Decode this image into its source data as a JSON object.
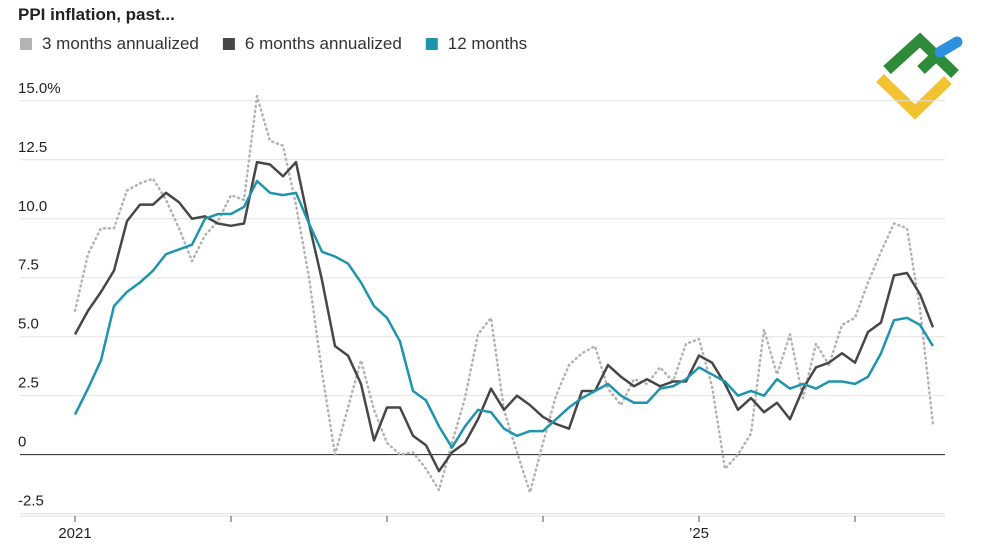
{
  "chart_data": {
    "type": "line",
    "title": "PPI inflation, past...",
    "categories": [
      "2021",
      null,
      null,
      null,
      null,
      null,
      null,
      null,
      null,
      null,
      null,
      null,
      null,
      null,
      null,
      null,
      null,
      null,
      null,
      null,
      null,
      null,
      null,
      null,
      null,
      null,
      null,
      null,
      null,
      null,
      null,
      null,
      null,
      null,
      null,
      null,
      null,
      null,
      null,
      null,
      null,
      null,
      null,
      null,
      null,
      null,
      null,
      null,
      "’25",
      null,
      null,
      null,
      null,
      null,
      null,
      null,
      null,
      null,
      null,
      null,
      null,
      null,
      null,
      null,
      null,
      null,
      null
    ],
    "series": [
      {
        "name": "3 months annualized",
        "color": "#b3b3b3",
        "dash": true,
        "values": [
          6.1,
          8.5,
          9.6,
          9.6,
          11.2,
          11.5,
          11.7,
          10.8,
          9.6,
          8.2,
          9.3,
          9.9,
          11.0,
          10.8,
          15.2,
          13.3,
          13.1,
          10.6,
          7.5,
          3.5,
          0,
          2.0,
          4.0,
          1.9,
          0.5,
          0.0,
          0.1,
          -0.6,
          -1.5,
          0.5,
          2.4,
          5.1,
          5.8,
          1.9,
          0.1,
          -1.6,
          0.5,
          2.5,
          3.8,
          4.3,
          4.6,
          2.8,
          2.1,
          3.2,
          3.0,
          3.7,
          3.1,
          4.7,
          4.9,
          2.9,
          -0.6,
          0.0,
          0.9,
          5.3,
          3.4,
          5.1,
          2.4,
          4.7,
          3.8,
          5.5,
          5.8,
          7.3,
          8.6,
          9.8,
          9.6,
          6.2,
          1.3
        ]
      },
      {
        "name": "6 months annualized",
        "color": "#474747",
        "values": [
          5.1,
          6.1,
          6.9,
          7.8,
          9.9,
          10.6,
          10.6,
          11.1,
          10.7,
          10.0,
          10.1,
          9.8,
          9.7,
          9.8,
          12.4,
          12.3,
          11.8,
          12.4,
          9.8,
          7.4,
          4.6,
          4.2,
          3.0,
          0.6,
          2.0,
          2.0,
          0.8,
          0.4,
          -0.7,
          0.1,
          0.5,
          1.5,
          2.8,
          1.9,
          2.5,
          2.1,
          1.6,
          1.3,
          1.1,
          2.7,
          2.7,
          3.8,
          3.3,
          2.9,
          3.2,
          2.9,
          3.1,
          3.1,
          4.2,
          3.9,
          3.0,
          1.9,
          2.4,
          1.8,
          2.2,
          1.5,
          2.8,
          3.7,
          3.9,
          4.3,
          3.9,
          5.2,
          5.6,
          7.6,
          7.7,
          6.8,
          5.4
        ]
      },
      {
        "name": "12 months",
        "color": "#1f94ad",
        "values": [
          1.7,
          2.8,
          4.0,
          6.3,
          6.9,
          7.3,
          7.8,
          8.5,
          8.7,
          8.9,
          10.0,
          10.2,
          10.2,
          10.5,
          11.6,
          11.1,
          11.0,
          11.1,
          9.8,
          8.6,
          8.4,
          8.1,
          7.3,
          6.3,
          5.8,
          4.8,
          2.7,
          2.3,
          1.2,
          0.3,
          1.2,
          1.9,
          1.8,
          1.1,
          0.8,
          1.0,
          1.0,
          1.5,
          2.0,
          2.4,
          2.7,
          3.0,
          2.5,
          2.2,
          2.2,
          2.8,
          2.9,
          3.2,
          3.7,
          3.4,
          3.1,
          2.5,
          2.7,
          2.5,
          3.2,
          2.8,
          3.0,
          2.8,
          3.1,
          3.1,
          3.0,
          3.3,
          4.3,
          5.7,
          5.8,
          5.5,
          4.6
        ]
      }
    ],
    "ylim": [
      -2.6,
      15.5
    ],
    "yticks": [
      {
        "value": 15,
        "label": "15.0%"
      },
      12.5,
      {
        "value": 10,
        "label": "10.0"
      },
      7.5,
      {
        "value": 5,
        "label": "5.0"
      },
      2.5,
      0,
      -2.5
    ],
    "grid": true
  }
}
